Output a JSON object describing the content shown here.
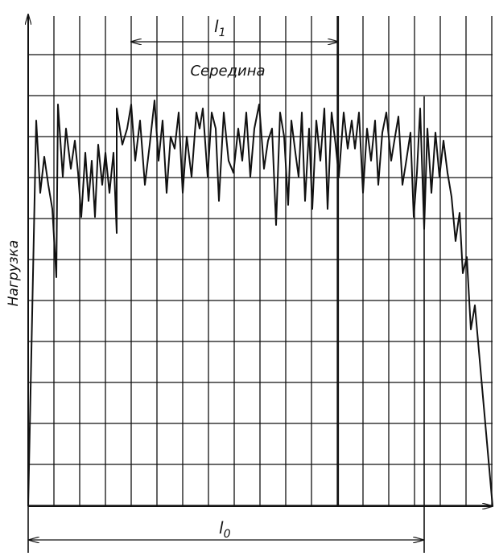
{
  "axis_label": "Нагрузка",
  "middle_label": "Середина",
  "dimensions": [
    {
      "label": "l",
      "subscript": "1"
    },
    {
      "label": "l",
      "subscript": "0"
    }
  ]
}
